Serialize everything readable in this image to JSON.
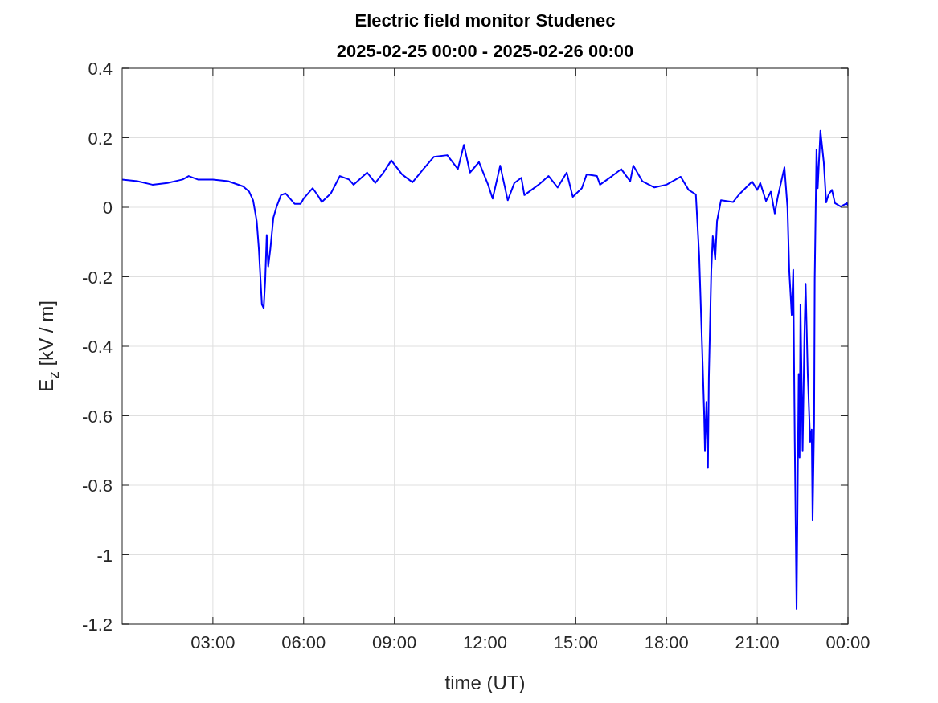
{
  "chart_data": {
    "type": "line",
    "title": "Electric field monitor Studenec",
    "subtitle": "2025-02-25 00:00 - 2025-02-26 00:00",
    "xlabel": "time (UT)",
    "ylabel": "E$_{z}$ [kV / m]",
    "xlim": [
      0,
      24
    ],
    "xticks": [
      {
        "value": 3,
        "label": "03:00"
      },
      {
        "value": 6,
        "label": "06:00"
      },
      {
        "value": 9,
        "label": "09:00"
      },
      {
        "value": 12,
        "label": "12:00"
      },
      {
        "value": 15,
        "label": "15:00"
      },
      {
        "value": 18,
        "label": "18:00"
      },
      {
        "value": 21,
        "label": "21:00"
      },
      {
        "value": 24,
        "label": "00:00"
      }
    ],
    "ylim": [
      -1.2,
      0.4
    ],
    "yticks": [
      -1.2,
      -1,
      -0.8,
      -0.6,
      -0.4,
      -0.2,
      0,
      0.2,
      0.4
    ],
    "grid": true,
    "marker": "none",
    "line_style": "solid",
    "series": [
      {
        "color": "#0000ff",
        "x": [
          0,
          0.5,
          1,
          1.5,
          2,
          2.2,
          2.5,
          3,
          3.5,
          4,
          4.2,
          4.33,
          4.45,
          4.52,
          4.62,
          4.68,
          4.73,
          4.78,
          4.83,
          4.9,
          5.0,
          5.1,
          5.25,
          5.4,
          5.7,
          5.9,
          6.0,
          6.3,
          6.5,
          6.6,
          6.9,
          7.2,
          7.5,
          7.65,
          8.1,
          8.37,
          8.64,
          8.9,
          9.25,
          9.6,
          9.96,
          10.3,
          10.75,
          11.1,
          11.3,
          11.5,
          11.8,
          12.1,
          12.25,
          12.5,
          12.75,
          12.97,
          13.2,
          13.3,
          13.77,
          14.1,
          14.4,
          14.7,
          14.9,
          15.2,
          15.36,
          15.7,
          15.8,
          16.2,
          16.5,
          16.8,
          16.9,
          17.2,
          17.6,
          18.0,
          18.47,
          18.73,
          18.97,
          19.08,
          19.19,
          19.24,
          19.27,
          19.32,
          19.37,
          19.4,
          19.48,
          19.53,
          19.61,
          19.67,
          19.8,
          20.2,
          20.4,
          20.83,
          21.0,
          21.1,
          21.29,
          21.45,
          21.58,
          21.68,
          21.9,
          22.0,
          22.06,
          22.14,
          22.19,
          22.24,
          22.3,
          22.37,
          22.4,
          22.43,
          22.5,
          22.56,
          22.6,
          22.67,
          22.75,
          22.8,
          22.83,
          22.88,
          22.9,
          22.96,
          23.0,
          23.09,
          23.2,
          23.28,
          23.36,
          23.47,
          23.57,
          23.76,
          23.97,
          24
        ],
        "values": [
          0.08,
          0.075,
          0.065,
          0.07,
          0.08,
          0.09,
          0.08,
          0.08,
          0.075,
          0.06,
          0.045,
          0.02,
          -0.04,
          -0.12,
          -0.28,
          -0.29,
          -0.21,
          -0.08,
          -0.17,
          -0.12,
          -0.03,
          0.0,
          0.035,
          0.04,
          0.01,
          0.01,
          0.025,
          0.055,
          0.03,
          0.015,
          0.04,
          0.09,
          0.08,
          0.065,
          0.1,
          0.07,
          0.1,
          0.135,
          0.095,
          0.072,
          0.11,
          0.145,
          0.15,
          0.11,
          0.18,
          0.1,
          0.13,
          0.065,
          0.025,
          0.12,
          0.02,
          0.07,
          0.085,
          0.035,
          0.065,
          0.09,
          0.057,
          0.1,
          0.03,
          0.055,
          0.095,
          0.09,
          0.065,
          0.09,
          0.11,
          0.075,
          0.12,
          0.075,
          0.057,
          0.065,
          0.088,
          0.05,
          0.037,
          -0.14,
          -0.44,
          -0.58,
          -0.7,
          -0.56,
          -0.75,
          -0.49,
          -0.185,
          -0.083,
          -0.15,
          -0.04,
          0.02,
          0.015,
          0.037,
          0.074,
          0.05,
          0.07,
          0.018,
          0.045,
          -0.018,
          0.03,
          0.115,
          0.0,
          -0.185,
          -0.31,
          -0.18,
          -0.675,
          -1.156,
          -0.48,
          -0.72,
          -0.28,
          -0.7,
          -0.37,
          -0.22,
          -0.48,
          -0.675,
          -0.64,
          -0.9,
          -0.62,
          -0.21,
          0.166,
          0.055,
          0.22,
          0.13,
          0.014,
          0.037,
          0.05,
          0.012,
          0.002,
          0.012,
          0.005
        ]
      }
    ]
  }
}
